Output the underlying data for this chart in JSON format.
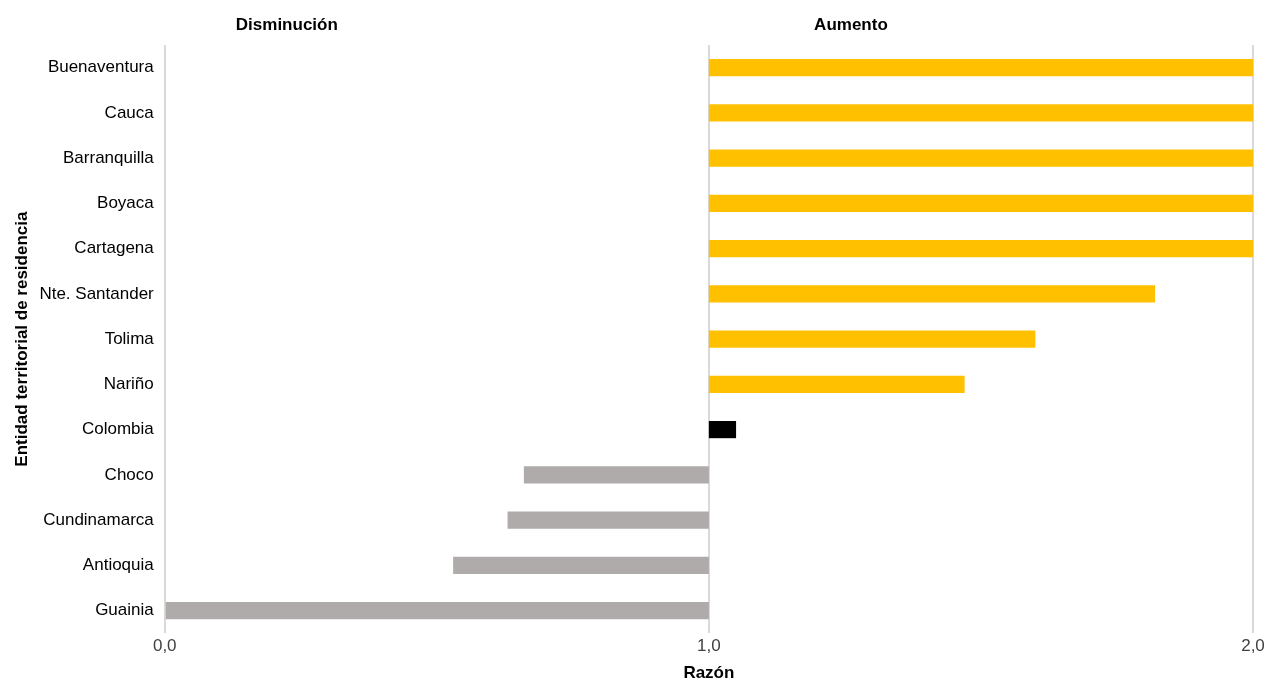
{
  "chart_data": {
    "type": "bar",
    "orientation": "horizontal",
    "xlabel": "Razón",
    "ylabel": "Entidad territorial de residencia",
    "annotations": [
      "Disminución",
      "Aumento"
    ],
    "categories": [
      "Buenaventura",
      "Cauca",
      "Barranquilla",
      "Boyaca",
      "Cartagena",
      "Nte. Santander",
      "Tolima",
      "Nariño",
      "Colombia",
      "Choco",
      "Cundinamarca",
      "Antioquia",
      "Guainia"
    ],
    "base": [
      1,
      1,
      1,
      1,
      1,
      1,
      1,
      1,
      1,
      1,
      1,
      1,
      1
    ],
    "values": [
      1,
      1,
      1,
      1,
      1,
      0.82,
      0.6,
      0.47,
      0.05,
      -0.34,
      -0.37,
      -0.47,
      -1
    ],
    "colors": [
      "#ffc000",
      "#ffc000",
      "#ffc000",
      "#ffc000",
      "#ffc000",
      "#ffc000",
      "#ffc000",
      "#ffc000",
      "#000000",
      "#afabab",
      "#afabab",
      "#afabab",
      "#afabab"
    ],
    "xlim": [
      0,
      2
    ],
    "xticks": [
      {
        "value": 0,
        "label": "0,0"
      },
      {
        "value": 1,
        "label": "1,0"
      },
      {
        "value": 2,
        "label": "2,0"
      }
    ],
    "grid": "x",
    "legend": false
  }
}
